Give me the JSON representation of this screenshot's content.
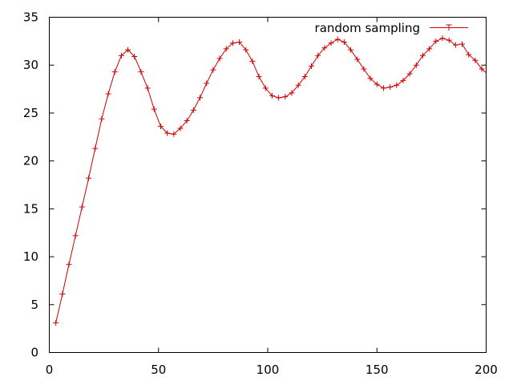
{
  "chart_data": {
    "type": "line",
    "title": "",
    "xlabel": "",
    "ylabel": "",
    "xlim": [
      0,
      200
    ],
    "ylim": [
      0,
      35
    ],
    "xticks": [
      0,
      50,
      100,
      150,
      200
    ],
    "yticks": [
      0,
      5,
      10,
      15,
      20,
      25,
      30,
      35
    ],
    "grid": false,
    "legend_position": "top-right",
    "series": [
      {
        "name": "random sampling",
        "color": "#cc0000",
        "marker": "plus",
        "x": [
          3,
          6,
          9,
          12,
          15,
          18,
          21,
          24,
          27,
          30,
          33,
          36,
          39,
          42,
          45,
          48,
          51,
          54,
          57,
          60,
          63,
          66,
          69,
          72,
          75,
          78,
          81,
          84,
          87,
          90,
          93,
          96,
          99,
          102,
          105,
          108,
          111,
          114,
          117,
          120,
          123,
          126,
          129,
          132,
          135,
          138,
          141,
          144,
          147,
          150,
          153,
          156,
          159,
          162,
          165,
          168,
          171,
          174,
          177,
          180,
          183,
          186,
          189,
          192,
          195,
          198,
          201
        ],
        "values": [
          3.1,
          6.1,
          9.2,
          12.2,
          15.2,
          18.2,
          21.3,
          24.4,
          27.0,
          29.3,
          31.0,
          31.6,
          30.9,
          29.3,
          27.6,
          25.4,
          23.6,
          22.9,
          22.8,
          23.4,
          24.2,
          25.3,
          26.6,
          28.1,
          29.5,
          30.7,
          31.7,
          32.3,
          32.4,
          31.6,
          30.4,
          28.8,
          27.6,
          26.8,
          26.6,
          26.7,
          27.1,
          27.9,
          28.8,
          29.9,
          31.0,
          31.8,
          32.3,
          32.7,
          32.4,
          31.6,
          30.6,
          29.6,
          28.6,
          28.0,
          27.6,
          27.7,
          27.9,
          28.4,
          29.1,
          30.0,
          31.0,
          31.7,
          32.5,
          32.8,
          32.6,
          32.1,
          32.2,
          31.1,
          30.5,
          29.6,
          29.0
        ]
      }
    ]
  }
}
